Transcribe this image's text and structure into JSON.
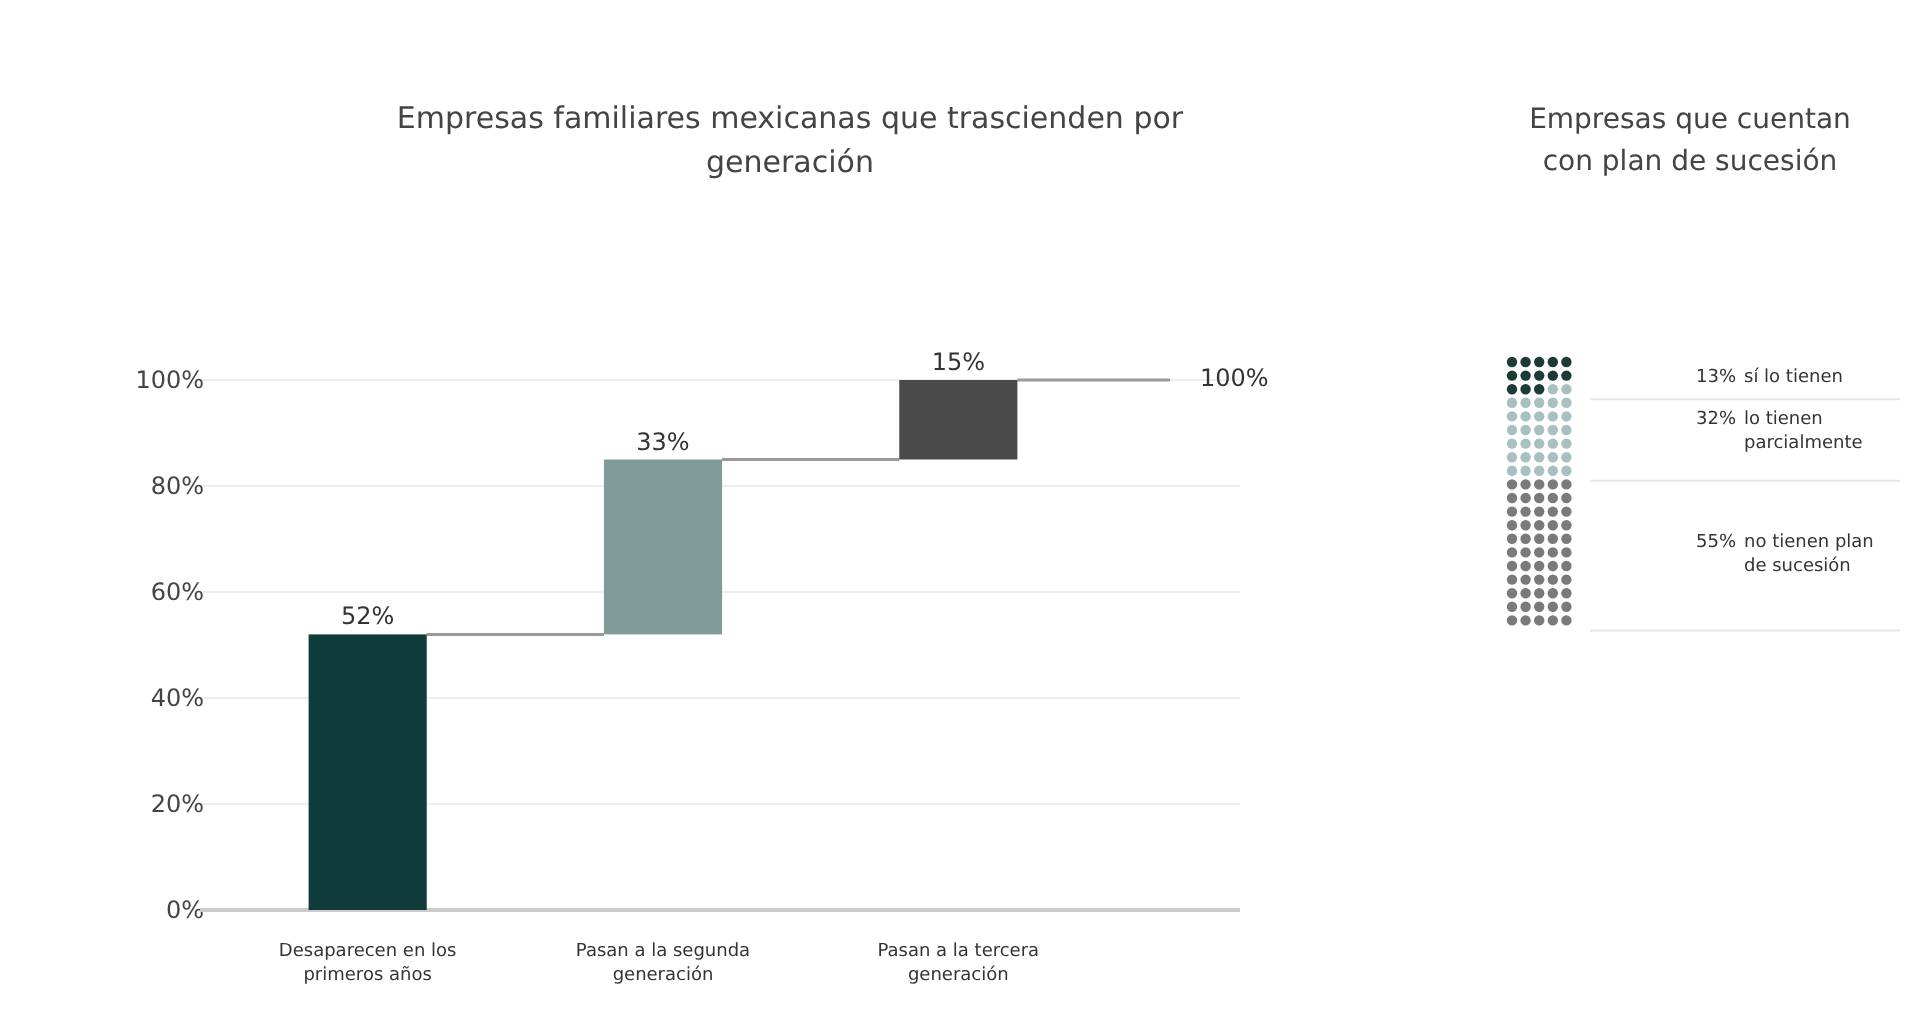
{
  "chart_data": [
    {
      "type": "bar",
      "title": "Empresas familiares mexicanas que trascienden por generación",
      "categories": [
        "Desaparecen en los primeros años",
        "Pasan a la segunda generación",
        "Pasan a la tercera generación"
      ],
      "values": [
        52,
        33,
        15
      ],
      "base": [
        0,
        52,
        85
      ],
      "colors": [
        "#0f3b3a",
        "#7f9c98",
        "#4a4a4a"
      ],
      "ylim": [
        0,
        100
      ],
      "yticks": [
        {
          "value": 0,
          "label": "0%"
        },
        {
          "value": 20,
          "label": "20%"
        },
        {
          "value": 40,
          "label": "40%"
        },
        {
          "value": 60,
          "label": "60%"
        },
        {
          "value": 80,
          "label": "80%"
        },
        {
          "value": 100,
          "label": "100%"
        }
      ],
      "value_labels": [
        "52%",
        "33%",
        "15%"
      ],
      "grid": "y",
      "annotations": [
        "100%"
      ]
    },
    {
      "type": "other",
      "title": "Empresas que cuentan con plan de sucesión",
      "categories": [
        "sí lo tienen",
        "lo tienen parcialmente",
        "no tienen plan de sucesión"
      ],
      "values": [
        13,
        32,
        55
      ],
      "value_labels": [
        "13%",
        "32%",
        "55%"
      ],
      "colors": [
        "#1d3a36",
        "#a9c0c0",
        "#7a7a7a"
      ]
    }
  ]
}
